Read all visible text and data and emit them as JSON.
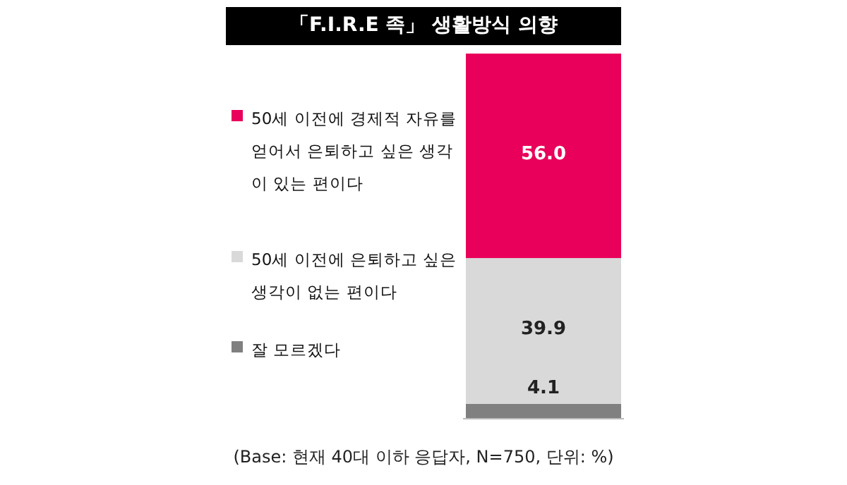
{
  "chart_data": {
    "type": "bar",
    "stacked": true,
    "title": "「F.I.R.E 족」 생활방식 의향",
    "categories": [
      null
    ],
    "series": [
      {
        "name": "잘 모르겠다",
        "color": "#808080",
        "values": [
          4.1
        ],
        "value_labels": [
          "4.1"
        ]
      },
      {
        "name": "50세 이전에 은퇴하고 싶은 생각이 없는 편이다",
        "color": "#d9d9d9",
        "values": [
          39.9
        ],
        "value_labels": [
          "39.9"
        ]
      },
      {
        "name": "50세 이전에 경제적 자유를 얻어서 은퇴하고 싶은 생각이 있는 편이다",
        "color": "#e8005a",
        "values": [
          56.0
        ],
        "value_labels": [
          "56.0"
        ]
      }
    ],
    "legend": "left",
    "annotations": [
      "(Base: 현재 40대 이하 응답자, N=750, 단위: %)"
    ]
  }
}
